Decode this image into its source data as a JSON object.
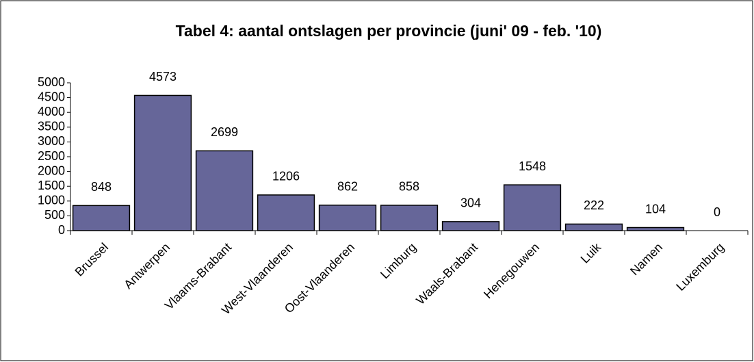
{
  "chart_data": {
    "type": "bar",
    "title": "Tabel 4: aantal ontslagen per provincie (juni' 09 - feb. '10)",
    "categories": [
      "Brussel",
      "Antwerpen",
      "Vlaams-Brabant",
      "West-Vlaanderen",
      "Oost-Vlaanderen",
      "Limburg",
      "Waals-Brabant",
      "Henegouwen",
      "Luik",
      "Namen",
      "Luxemburg"
    ],
    "values": [
      848,
      4573,
      2699,
      1206,
      862,
      858,
      304,
      1548,
      222,
      104,
      0
    ],
    "color": "#666699",
    "ylim": [
      0,
      5000
    ],
    "yticks": [
      0,
      500,
      1000,
      1500,
      2000,
      2500,
      3000,
      3500,
      4000,
      4500,
      5000
    ],
    "grid": false
  }
}
